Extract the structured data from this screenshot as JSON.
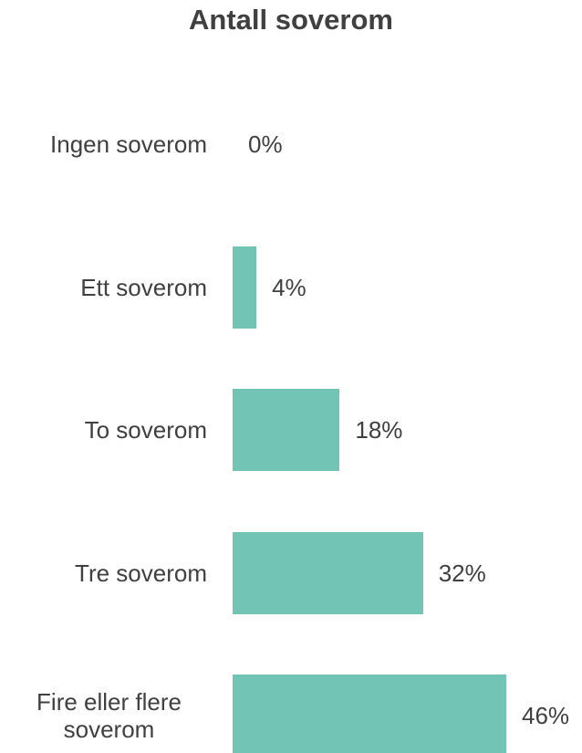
{
  "chart_data": {
    "type": "bar",
    "orientation": "horizontal",
    "title": "Antall soverom",
    "categories": [
      "Ingen soverom",
      "Ett soverom",
      "To soverom",
      "Tre soverom",
      "Fire eller flere soverom"
    ],
    "values": [
      0,
      4,
      18,
      32,
      46
    ],
    "value_labels": [
      "0%",
      "4%",
      "18%",
      "32%",
      "46%"
    ],
    "color": "#72c4b4"
  }
}
